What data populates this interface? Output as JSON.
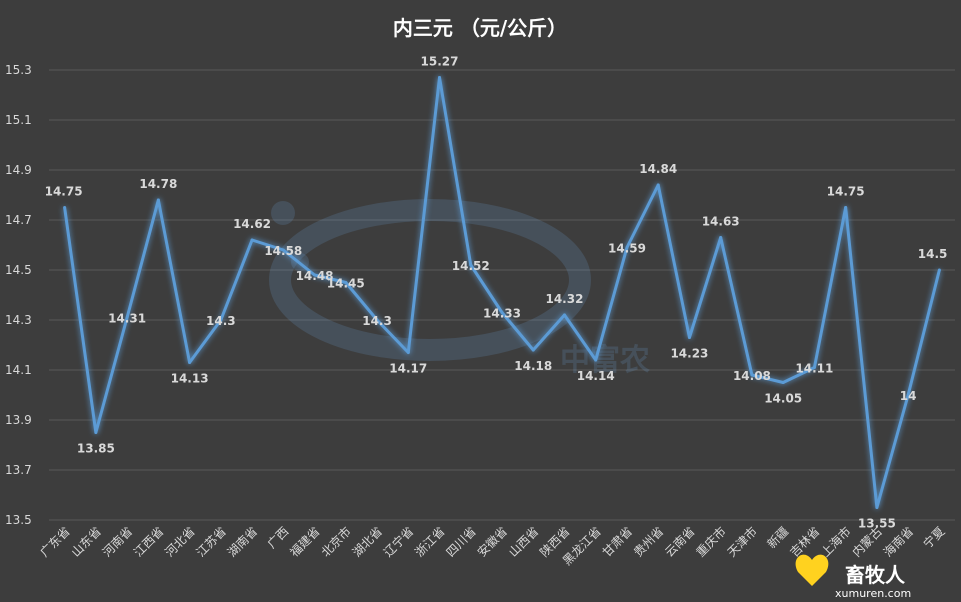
{
  "chart_data": {
    "type": "line",
    "title": "内三元 （元/公斤）",
    "xlabel": "",
    "ylabel": "",
    "ylim": [
      13.5,
      15.3
    ],
    "yticks": [
      13.5,
      13.7,
      13.9,
      14.1,
      14.3,
      14.5,
      14.7,
      14.9,
      15.1,
      15.3
    ],
    "grid": true,
    "legend": "none",
    "line_color": "#5b9bd5",
    "categories": [
      "广东省",
      "山东省",
      "河南省",
      "江西省",
      "河北省",
      "江苏省",
      "湖南省",
      "广西",
      "福建省",
      "北京市",
      "湖北省",
      "辽宁省",
      "浙江省",
      "四川省",
      "安徽省",
      "山西省",
      "陕西省",
      "黑龙江省",
      "甘肃省",
      "贵州省",
      "云南省",
      "重庆市",
      "天津市",
      "新疆",
      "吉林省",
      "上海市",
      "内蒙古",
      "海南省",
      "宁夏"
    ],
    "values": [
      14.75,
      13.85,
      14.31,
      14.78,
      14.13,
      14.3,
      14.62,
      14.58,
      14.48,
      14.45,
      14.3,
      14.17,
      15.27,
      14.52,
      14.33,
      14.18,
      14.32,
      14.14,
      14.59,
      14.84,
      14.23,
      14.63,
      14.08,
      14.05,
      14.11,
      14.75,
      13.55,
      14,
      14.5
    ],
    "data_labels": [
      "14.75",
      "13.85",
      "14.31",
      "14.78",
      "14.13",
      "14.3",
      "14.62",
      "14.58",
      "14.48",
      "14.45",
      "14.3",
      "14.17",
      "15.27",
      "14.52",
      "14.33",
      "14.18",
      "14.32",
      "14.14",
      "14.59",
      "14.84",
      "14.23",
      "14.63",
      "14.08",
      "14.05",
      "14.11",
      "14.75",
      "13.55",
      "14",
      "14.5"
    ]
  },
  "watermark": {
    "text": "中富农"
  },
  "brand": {
    "name": "畜牧人",
    "url": "xumuren.com"
  }
}
